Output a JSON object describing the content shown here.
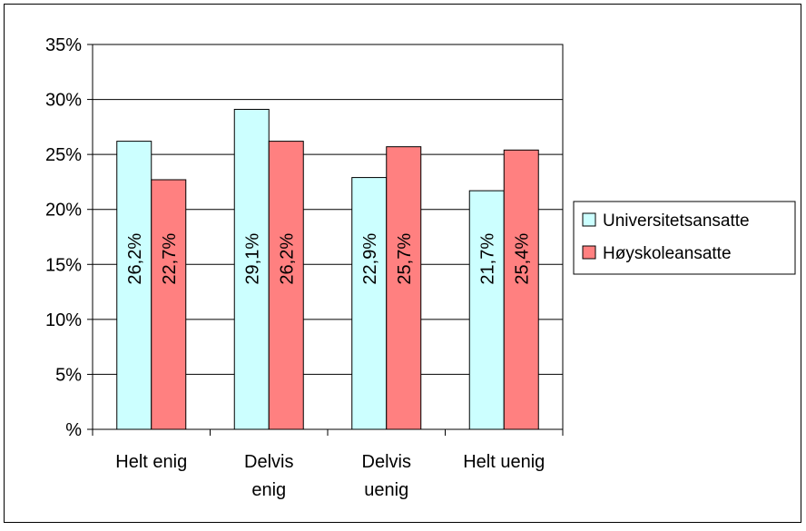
{
  "chart_data": {
    "type": "bar",
    "categories": [
      "Helt enig",
      "Delvis enig",
      "Delvis uenig",
      "Helt uenig"
    ],
    "category_lines": [
      [
        "Helt enig"
      ],
      [
        "Delvis",
        "enig"
      ],
      [
        "Delvis",
        "uenig"
      ],
      [
        "Helt uenig"
      ]
    ],
    "series": [
      {
        "name": "Universitetsansatte",
        "values": [
          26.2,
          29.1,
          22.9,
          21.7
        ],
        "labels": [
          "26,2%",
          "29,1%",
          "22,9%",
          "21,7%"
        ],
        "color": "#ccffff"
      },
      {
        "name": "Høyskoleansatte",
        "values": [
          22.7,
          26.2,
          25.7,
          25.4
        ],
        "labels": [
          "22,7%",
          "26,2%",
          "25,7%",
          "25,4%"
        ],
        "color": "#ff8080"
      }
    ],
    "ylim": [
      0,
      35
    ],
    "yticks": [
      0,
      5,
      10,
      15,
      20,
      25,
      30,
      35
    ],
    "ytick_labels": [
      "%",
      "5%",
      "10%",
      "15%",
      "20%",
      "25%",
      "30%",
      "35%"
    ],
    "grid": true,
    "legend_position": "right",
    "title": "",
    "xlabel": "",
    "ylabel": ""
  }
}
